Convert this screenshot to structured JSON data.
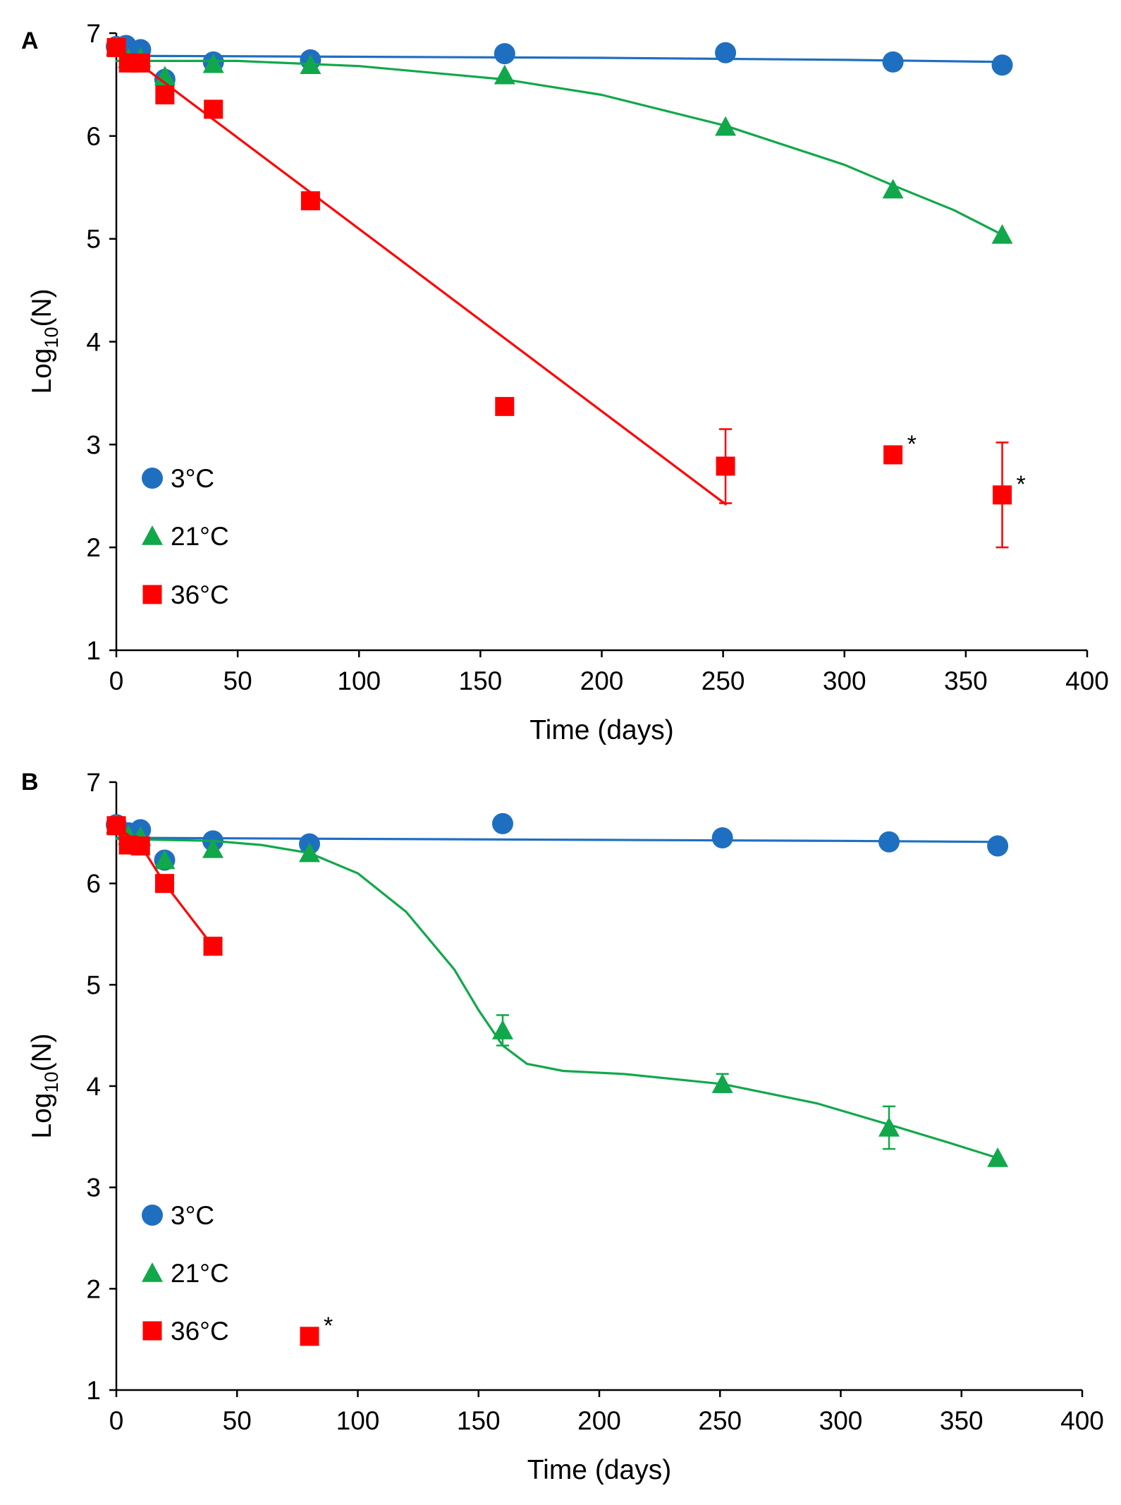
{
  "chart_data": [
    {
      "panel": "A",
      "type": "scatter",
      "xlabel": "Time (days)",
      "ylabel_main": "Log",
      "ylabel_sub": "10",
      "ylabel_tail": "(N)",
      "xlim": [
        0,
        400
      ],
      "ylim": [
        1,
        7
      ],
      "x_ticks": [
        0,
        50,
        100,
        150,
        200,
        250,
        300,
        350,
        400
      ],
      "y_ticks": [
        1,
        2,
        3,
        4,
        5,
        6,
        7
      ],
      "legend": [
        "3°C",
        "21°C",
        "36°C"
      ],
      "series": [
        {
          "name": "3°C",
          "color": "#1f6fc1",
          "marker": "circle",
          "points": [
            [
              0,
              6.87
            ],
            [
              4,
              6.88
            ],
            [
              10,
              6.84
            ],
            [
              20,
              6.55
            ],
            [
              40,
              6.72
            ],
            [
              80,
              6.74
            ],
            [
              160,
              6.8
            ],
            [
              251,
              6.81
            ],
            [
              320,
              6.72
            ],
            [
              365,
              6.69
            ]
          ],
          "fit": [
            [
              0,
              6.78
            ],
            [
              100,
              6.77
            ],
            [
              200,
              6.76
            ],
            [
              300,
              6.74
            ],
            [
              365,
              6.72
            ]
          ]
        },
        {
          "name": "21°C",
          "color": "#10a84a",
          "marker": "triangle",
          "points": [
            [
              0,
              6.87
            ],
            [
              5,
              6.75
            ],
            [
              10,
              6.76
            ],
            [
              20,
              6.58
            ],
            [
              40,
              6.7
            ],
            [
              80,
              6.69
            ],
            [
              160,
              6.59
            ],
            [
              251,
              6.09
            ],
            [
              320,
              5.48
            ],
            [
              365,
              5.04
            ]
          ],
          "fit": [
            [
              0,
              6.73
            ],
            [
              50,
              6.73
            ],
            [
              100,
              6.68
            ],
            [
              160,
              6.55
            ],
            [
              200,
              6.4
            ],
            [
              251,
              6.1
            ],
            [
              300,
              5.72
            ],
            [
              320,
              5.52
            ],
            [
              345,
              5.28
            ],
            [
              365,
              5.04
            ]
          ]
        },
        {
          "name": "36°C",
          "color": "#ff0000",
          "marker": "square",
          "points": [
            [
              0,
              6.86
            ],
            [
              5,
              6.71
            ],
            [
              10,
              6.71
            ],
            [
              20,
              6.4
            ],
            [
              40,
              6.26
            ],
            [
              80,
              5.37
            ],
            [
              160,
              3.37
            ],
            [
              251,
              2.79
            ],
            [
              320,
              2.9
            ],
            [
              365,
              2.51
            ]
          ],
          "fit": [
            [
              0,
              6.87
            ],
            [
              251,
              2.42
            ]
          ],
          "error_bars": [
            {
              "x": 251,
              "low": 2.43,
              "high": 3.15
            },
            {
              "x": 365,
              "low": 2.0,
              "high": 3.02
            }
          ],
          "asterisks": [
            320,
            365
          ]
        }
      ]
    },
    {
      "panel": "B",
      "type": "scatter",
      "xlabel": "Time (days)",
      "ylabel_main": "Log",
      "ylabel_sub": "10",
      "ylabel_tail": "(N)",
      "xlim": [
        0,
        400
      ],
      "ylim": [
        1,
        7
      ],
      "x_ticks": [
        0,
        50,
        100,
        150,
        200,
        250,
        300,
        350,
        400
      ],
      "y_ticks": [
        1,
        2,
        3,
        4,
        5,
        6,
        7
      ],
      "legend": [
        "3°C",
        "21°C",
        "36°C"
      ],
      "series": [
        {
          "name": "3°C",
          "color": "#1f6fc1",
          "marker": "circle",
          "points": [
            [
              0,
              6.58
            ],
            [
              5,
              6.5
            ],
            [
              10,
              6.53
            ],
            [
              20,
              6.23
            ],
            [
              40,
              6.42
            ],
            [
              80,
              6.39
            ],
            [
              160,
              6.59
            ],
            [
              251,
              6.45
            ],
            [
              320,
              6.41
            ],
            [
              365,
              6.37
            ]
          ],
          "fit": [
            [
              0,
              6.45
            ],
            [
              100,
              6.44
            ],
            [
              200,
              6.43
            ],
            [
              300,
              6.42
            ],
            [
              365,
              6.41
            ]
          ]
        },
        {
          "name": "21°C",
          "color": "#10a84a",
          "marker": "triangle",
          "points": [
            [
              0,
              6.58
            ],
            [
              5,
              6.47
            ],
            [
              10,
              6.46
            ],
            [
              20,
              6.23
            ],
            [
              40,
              6.34
            ],
            [
              80,
              6.3
            ],
            [
              160,
              4.55
            ],
            [
              251,
              4.02
            ],
            [
              320,
              3.59
            ],
            [
              365,
              3.29
            ]
          ],
          "fit": [
            [
              0,
              6.44
            ],
            [
              40,
              6.42
            ],
            [
              60,
              6.38
            ],
            [
              80,
              6.3
            ],
            [
              100,
              6.1
            ],
            [
              120,
              5.72
            ],
            [
              140,
              5.15
            ],
            [
              150,
              4.75
            ],
            [
              160,
              4.4
            ],
            [
              170,
              4.22
            ],
            [
              185,
              4.15
            ],
            [
              210,
              4.12
            ],
            [
              251,
              4.02
            ],
            [
              290,
              3.83
            ],
            [
              320,
              3.62
            ],
            [
              345,
              3.44
            ],
            [
              365,
              3.29
            ]
          ],
          "error_bars": [
            {
              "x": 160,
              "low": 4.4,
              "high": 4.7
            },
            {
              "x": 251,
              "low": 3.94,
              "high": 4.12
            },
            {
              "x": 320,
              "low": 3.38,
              "high": 3.8
            }
          ]
        },
        {
          "name": "36°C",
          "color": "#ff0000",
          "marker": "square",
          "points": [
            [
              0,
              6.57
            ],
            [
              5,
              6.38
            ],
            [
              10,
              6.37
            ],
            [
              20,
              6.0
            ],
            [
              40,
              5.38
            ],
            [
              80,
              1.53
            ]
          ],
          "fit": [
            [
              0,
              6.57
            ],
            [
              10,
              6.38
            ],
            [
              20,
              6.0
            ],
            [
              40,
              5.38
            ]
          ],
          "asterisks": [
            80
          ]
        }
      ]
    }
  ]
}
